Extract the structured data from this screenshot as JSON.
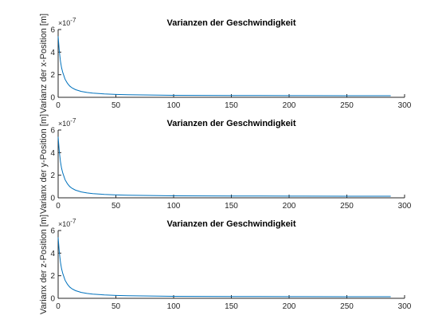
{
  "chart_data": [
    {
      "type": "line",
      "title": "Varianzen der Geschwindigkeit",
      "xlabel": "",
      "ylabel": "Varianz der x-Position [m]",
      "exponent_label": "×10",
      "exponent_power": "-7",
      "xlim": [
        0,
        300
      ],
      "ylim": [
        0,
        6
      ],
      "xticks": [
        "0",
        "50",
        "100",
        "150",
        "200",
        "250",
        "300"
      ],
      "yticks": [
        "0",
        "2",
        "4",
        "6"
      ],
      "grid": false,
      "color": "#0072bd",
      "series": [
        {
          "x": [
            0,
            1,
            2,
            3,
            4,
            5,
            6,
            8,
            10,
            12,
            15,
            20,
            25,
            30,
            40,
            50,
            60,
            80,
            100,
            125,
            150,
            175,
            200,
            250,
            288
          ],
          "y": [
            5.4,
            4.1,
            3.2,
            2.6,
            2.2,
            1.9,
            1.6,
            1.25,
            1.0,
            0.84,
            0.68,
            0.52,
            0.43,
            0.37,
            0.3,
            0.26,
            0.23,
            0.2,
            0.18,
            0.17,
            0.16,
            0.155,
            0.15,
            0.145,
            0.14
          ]
        }
      ]
    },
    {
      "type": "line",
      "title": "Varianzen der Geschwindigkeit",
      "xlabel": "",
      "ylabel": "Varianx der y-Position [m]",
      "exponent_label": "×10",
      "exponent_power": "-7",
      "xlim": [
        0,
        300
      ],
      "ylim": [
        0,
        6
      ],
      "xticks": [
        "0",
        "50",
        "100",
        "150",
        "200",
        "250",
        "300"
      ],
      "yticks": [
        "0",
        "2",
        "4",
        "6"
      ],
      "grid": false,
      "color": "#0072bd",
      "series": [
        {
          "x": [
            0,
            1,
            2,
            3,
            4,
            5,
            6,
            8,
            10,
            12,
            15,
            20,
            25,
            30,
            40,
            50,
            60,
            80,
            100,
            125,
            150,
            175,
            200,
            250,
            288
          ],
          "y": [
            5.4,
            4.1,
            3.2,
            2.6,
            2.2,
            1.9,
            1.6,
            1.25,
            1.0,
            0.84,
            0.68,
            0.52,
            0.43,
            0.37,
            0.3,
            0.26,
            0.23,
            0.2,
            0.18,
            0.17,
            0.16,
            0.155,
            0.15,
            0.145,
            0.14
          ]
        }
      ]
    },
    {
      "type": "line",
      "title": "Varianzen der Geschwindigkeit",
      "xlabel": "",
      "ylabel": "Varianx der z-Position [m]",
      "exponent_label": "×10",
      "exponent_power": "-7",
      "xlim": [
        0,
        300
      ],
      "ylim": [
        0,
        6
      ],
      "xticks": [
        "0",
        "50",
        "100",
        "150",
        "200",
        "250",
        "300"
      ],
      "yticks": [
        "0",
        "2",
        "4",
        "6"
      ],
      "grid": false,
      "color": "#0072bd",
      "series": [
        {
          "x": [
            0,
            1,
            2,
            3,
            4,
            5,
            6,
            8,
            10,
            12,
            15,
            20,
            25,
            30,
            40,
            50,
            60,
            80,
            100,
            125,
            150,
            175,
            200,
            250,
            288
          ],
          "y": [
            5.4,
            4.1,
            3.2,
            2.6,
            2.2,
            1.9,
            1.6,
            1.25,
            1.0,
            0.84,
            0.68,
            0.52,
            0.43,
            0.37,
            0.3,
            0.26,
            0.23,
            0.2,
            0.18,
            0.17,
            0.16,
            0.155,
            0.15,
            0.145,
            0.14
          ]
        }
      ]
    }
  ]
}
